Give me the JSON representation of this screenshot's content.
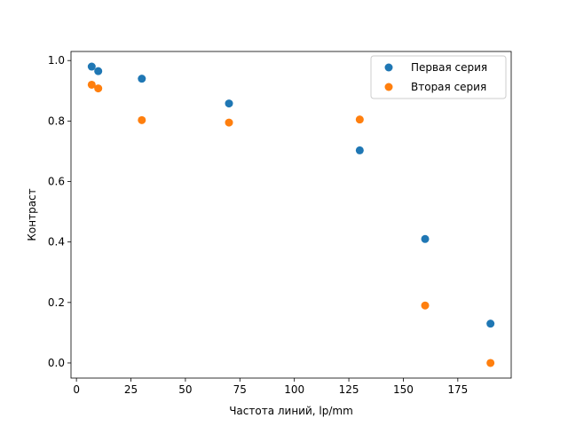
{
  "chart_data": {
    "type": "scatter",
    "title": "",
    "xlabel": "Частота линий, lp/mm",
    "ylabel": "Контраст",
    "xlim": [
      -2.5,
      199.5
    ],
    "ylim": [
      -0.05,
      1.03
    ],
    "xticks": [
      0,
      25,
      50,
      75,
      100,
      125,
      150,
      175
    ],
    "yticks": [
      0.0,
      0.2,
      0.4,
      0.6,
      0.8,
      1.0
    ],
    "xtick_labels": [
      "0",
      "25",
      "50",
      "75",
      "100",
      "125",
      "150",
      "175"
    ],
    "ytick_labels": [
      "0.0",
      "0.2",
      "0.4",
      "0.6",
      "0.8",
      "1.0"
    ],
    "grid": false,
    "legend_position": "top-right",
    "series": [
      {
        "name": "Первая серия",
        "color": "#1f77b4",
        "x": [
          7,
          10,
          30,
          70,
          130,
          160,
          190
        ],
        "y": [
          0.98,
          0.965,
          0.94,
          0.858,
          0.703,
          0.41,
          0.13
        ]
      },
      {
        "name": "Вторая серия",
        "color": "#ff7f0e",
        "x": [
          7,
          10,
          30,
          70,
          130,
          160,
          190
        ],
        "y": [
          0.92,
          0.908,
          0.803,
          0.795,
          0.805,
          0.19,
          0.0
        ]
      }
    ]
  }
}
